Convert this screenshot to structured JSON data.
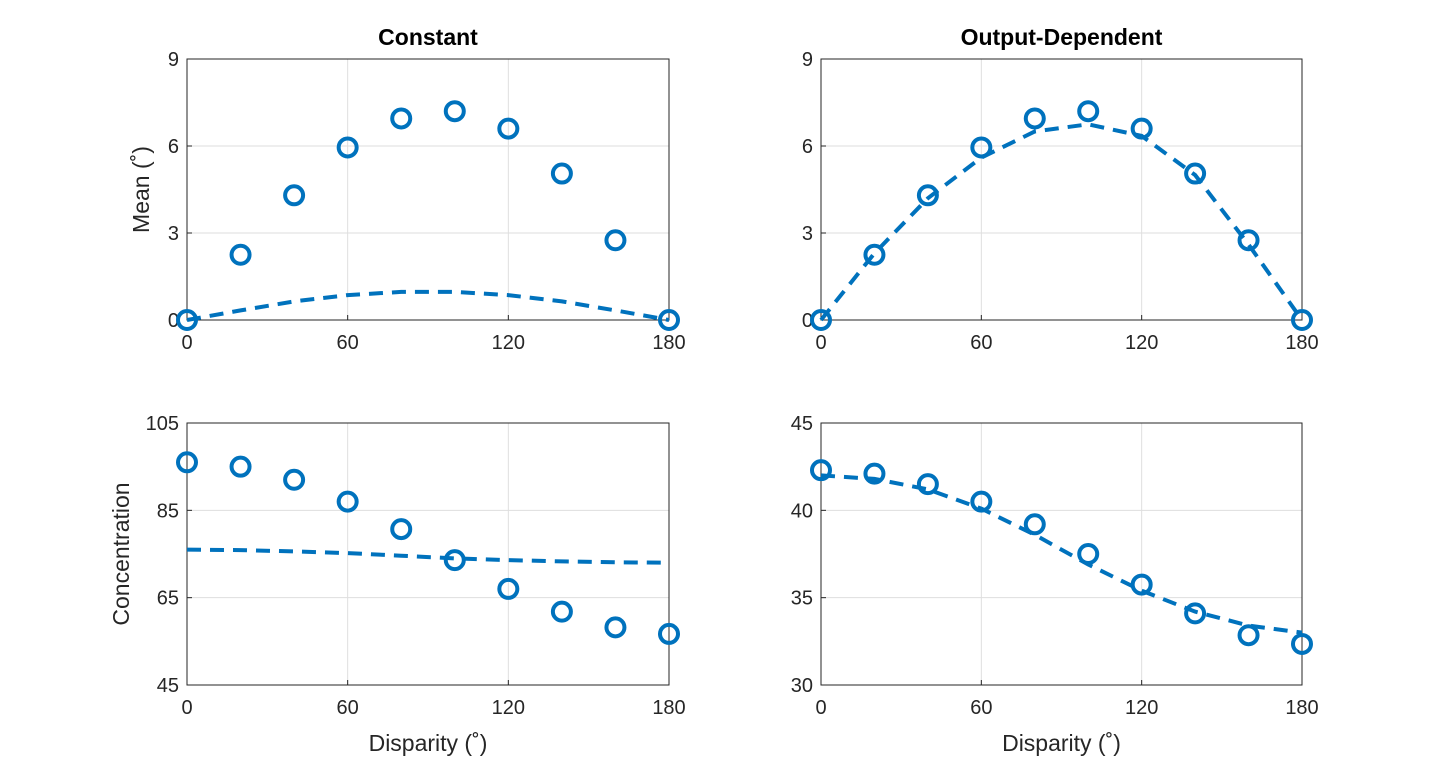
{
  "figure": {
    "series_color": "#0072BD"
  },
  "chart_data": [
    {
      "type": "scatter",
      "title": "Constant",
      "xlabel": "",
      "ylabel": "Mean (˚)",
      "xlim": [
        0,
        180
      ],
      "ylim": [
        0,
        9
      ],
      "xticks": [
        "0",
        "60",
        "120",
        "180"
      ],
      "yticks": [
        "0",
        "3",
        "6",
        "9"
      ],
      "grid": true,
      "series": [
        {
          "kind": "markers",
          "marker": "circle",
          "x": [
            0,
            20,
            40,
            60,
            80,
            100,
            120,
            140,
            160,
            180
          ],
          "y": [
            0,
            2.25,
            4.3,
            5.95,
            6.95,
            7.2,
            6.6,
            5.05,
            2.75,
            0
          ]
        },
        {
          "kind": "dashed-line",
          "x": [
            0,
            20,
            40,
            60,
            80,
            100,
            120,
            140,
            160,
            180
          ],
          "y": [
            0,
            0.33,
            0.64,
            0.86,
            0.97,
            0.97,
            0.86,
            0.64,
            0.33,
            0
          ]
        }
      ]
    },
    {
      "type": "scatter",
      "title": "Output-Dependent",
      "xlabel": "",
      "ylabel": "",
      "xlim": [
        0,
        180
      ],
      "ylim": [
        0,
        9
      ],
      "xticks": [
        "0",
        "60",
        "120",
        "180"
      ],
      "yticks": [
        "0",
        "3",
        "6",
        "9"
      ],
      "grid": true,
      "series": [
        {
          "kind": "markers",
          "marker": "circle",
          "x": [
            0,
            20,
            40,
            60,
            80,
            100,
            120,
            140,
            160,
            180
          ],
          "y": [
            0,
            2.25,
            4.3,
            5.95,
            6.95,
            7.2,
            6.6,
            5.05,
            2.75,
            0
          ]
        },
        {
          "kind": "dashed-line",
          "x": [
            0,
            20,
            40,
            60,
            80,
            100,
            120,
            140,
            160,
            180
          ],
          "y": [
            0,
            2.3,
            4.2,
            5.6,
            6.5,
            6.75,
            6.35,
            5.0,
            2.6,
            0
          ]
        }
      ]
    },
    {
      "type": "scatter",
      "title": "",
      "xlabel": "Disparity (˚)",
      "ylabel": "Concentration",
      "xlim": [
        0,
        180
      ],
      "ylim": [
        45,
        105
      ],
      "xticks": [
        "0",
        "60",
        "120",
        "180"
      ],
      "yticks": [
        "45",
        "65",
        "85",
        "105"
      ],
      "grid": true,
      "series": [
        {
          "kind": "markers",
          "marker": "circle",
          "x": [
            0,
            20,
            40,
            60,
            80,
            100,
            120,
            140,
            160,
            180
          ],
          "y": [
            96,
            95,
            92,
            87,
            80.7,
            73.6,
            67,
            61.8,
            58.2,
            56.7
          ]
        },
        {
          "kind": "dashed-line",
          "x": [
            0,
            20,
            40,
            60,
            80,
            100,
            120,
            140,
            160,
            180
          ],
          "y": [
            76,
            75.9,
            75.6,
            75.2,
            74.6,
            74.0,
            73.6,
            73.3,
            73.1,
            73.0
          ]
        }
      ]
    },
    {
      "type": "scatter",
      "title": "",
      "xlabel": "Disparity (˚)",
      "ylabel": "",
      "xlim": [
        0,
        180
      ],
      "ylim": [
        30,
        45
      ],
      "xticks": [
        "0",
        "60",
        "120",
        "180"
      ],
      "yticks": [
        "30",
        "35",
        "40",
        "45"
      ],
      "grid": true,
      "series": [
        {
          "kind": "markers",
          "marker": "circle",
          "x": [
            0,
            20,
            40,
            60,
            80,
            100,
            120,
            140,
            160,
            180
          ],
          "y": [
            42.3,
            42.1,
            41.5,
            40.5,
            39.2,
            37.5,
            35.75,
            34.1,
            32.85,
            32.35
          ]
        },
        {
          "kind": "dashed-line",
          "x": [
            0,
            20,
            40,
            60,
            80,
            100,
            120,
            140,
            160,
            180
          ],
          "y": [
            42.0,
            41.8,
            41.2,
            40.1,
            38.6,
            36.9,
            35.4,
            34.2,
            33.4,
            33.0
          ]
        }
      ]
    }
  ]
}
